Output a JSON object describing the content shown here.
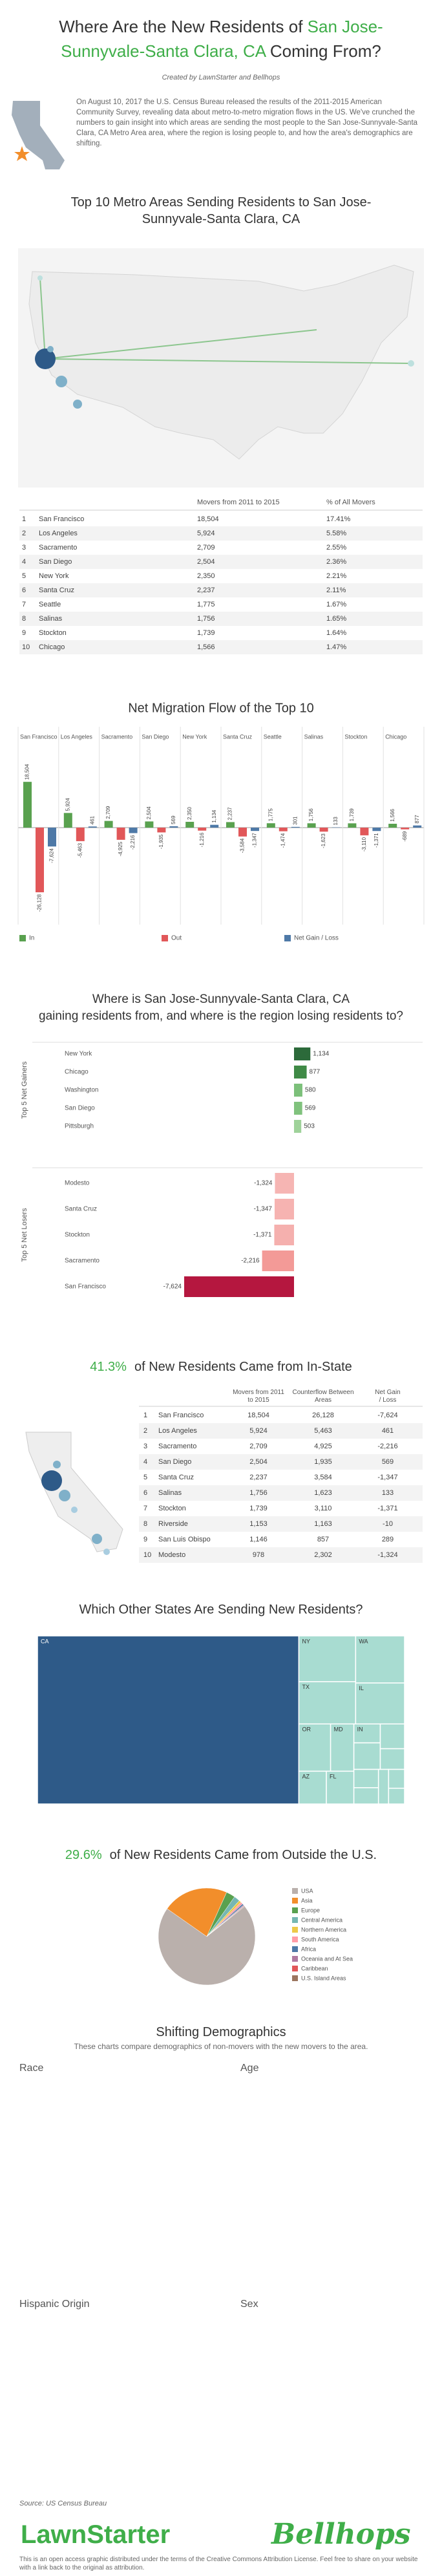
{
  "header": {
    "title_pre": "Where Are the New Residents of ",
    "title_highlight": "San Jose-Sunnyvale-Santa Clara, CA",
    "title_post": " Coming From?",
    "credit": "Created by LawnStarter and Bellhops",
    "intro": "On August 10, 2017 the U.S. Census Bureau released the results of the 2011-2015 American Community Survey, revealing data about metro-to-metro migration flows in the US. We've crunched the numbers to gain insight into which areas are sending the most people to the San Jose-Sunnyvale-Santa Clara, CA Metro Area area, where the region is losing people to, and how the area's demographics are shifting."
  },
  "top10": {
    "title": "Top 10 Metro Areas Sending Residents to San Jose-Sunnyvale-Santa Clara, CA",
    "columns": [
      "Movers from 2011 to 2015",
      "% of All Movers"
    ],
    "rows": [
      [
        "1",
        "San Francisco",
        "18,504",
        "17.41%"
      ],
      [
        "2",
        "Los Angeles",
        "5,924",
        "5.58%"
      ],
      [
        "3",
        "Sacramento",
        "2,709",
        "2.55%"
      ],
      [
        "4",
        "San Diego",
        "2,504",
        "2.36%"
      ],
      [
        "5",
        "New York",
        "2,350",
        "2.21%"
      ],
      [
        "6",
        "Santa Cruz",
        "2,237",
        "2.11%"
      ],
      [
        "7",
        "Seattle",
        "1,775",
        "1.67%"
      ],
      [
        "8",
        "Salinas",
        "1,756",
        "1.65%"
      ],
      [
        "9",
        "Stockton",
        "1,739",
        "1.64%"
      ],
      [
        "10",
        "Chicago",
        "1,566",
        "1.47%"
      ]
    ]
  },
  "chart_data": [
    {
      "type": "bar",
      "title": "Net Migration Flow of the Top 10",
      "categories": [
        "San Francisco",
        "Los Angeles",
        "Sacramento",
        "San Diego",
        "New York",
        "Santa Cruz",
        "Seattle",
        "Salinas",
        "Stockton",
        "Chicago"
      ],
      "series": [
        {
          "name": "In",
          "color": "#59a14f",
          "values": [
            18504,
            5924,
            2709,
            2504,
            2350,
            2237,
            1775,
            1756,
            1739,
            1566
          ],
          "value_labels": [
            "18,504",
            "5,924",
            "2,709",
            "2,504",
            "2,350",
            "2,237",
            "1,775",
            "1,756",
            "1,739",
            "1,566"
          ]
        },
        {
          "name": "Out",
          "color": "#e15759",
          "values": [
            -26128,
            -5463,
            -4925,
            -1935,
            -1216,
            -3584,
            -1474,
            -1623,
            -3110,
            -689
          ],
          "value_labels": [
            "-26,128",
            "-5,463",
            "-4,925",
            "-1,935",
            "-1,216",
            "-3,584",
            "-1,474",
            "-1,623",
            "-3,110",
            "-689"
          ]
        },
        {
          "name": "Net Gain / Loss",
          "color": "#4e79a7",
          "values": [
            -7624,
            461,
            -2216,
            569,
            1134,
            -1347,
            301,
            133,
            -1371,
            877
          ],
          "value_labels": [
            "-7,624",
            "461",
            "-2,216",
            "569",
            "1,134",
            "-1,347",
            "301",
            "133",
            "-1,371",
            "877"
          ]
        }
      ]
    },
    {
      "type": "hbar",
      "title": "Where is San Jose-Sunnyvale-Santa Clara, CA gaining residents from, and where is the region losing residents to?",
      "groups": [
        {
          "name": "Top 5 Net Gainers",
          "categories": [
            "New York",
            "Chicago",
            "Washington",
            "San Diego",
            "Pittsburgh"
          ],
          "values": [
            1134,
            877,
            580,
            569,
            503
          ],
          "value_labels": [
            "1,134",
            "877",
            "580",
            "569",
            "503"
          ],
          "colors": [
            "#2c6a3a",
            "#3f8a46",
            "#7cc07a",
            "#80c27d",
            "#9fd29a"
          ]
        },
        {
          "name": "Top 5 Net Losers",
          "categories": [
            "Modesto",
            "Santa Cruz",
            "Stockton",
            "Sacramento",
            "San Francisco"
          ],
          "values": [
            -1324,
            -1347,
            -1371,
            -2216,
            -7624
          ],
          "value_labels": [
            "-1,324",
            "-1,347",
            "-1,371",
            "-2,216",
            "-7,624"
          ],
          "colors": [
            "#f6b5b3",
            "#f6b3b1",
            "#f5b0ae",
            "#f39a97",
            "#b5173f"
          ]
        }
      ]
    },
    {
      "type": "treemap",
      "title": "Which Other States Are Sending New Residents?",
      "categories": [
        "CA",
        "NY",
        "TX",
        "WA",
        "IL",
        "OR",
        "MD",
        "AZ",
        "FL",
        "IN",
        null,
        null,
        null,
        null,
        null,
        null,
        null,
        null
      ],
      "values": [
        43900,
        2600,
        2400,
        2300,
        2000,
        1500,
        1100,
        900,
        900,
        500,
        700,
        600,
        500,
        450,
        400,
        350,
        300,
        250
      ],
      "color": "#a8dcd1",
      "highlight_color": "#2e5a88"
    },
    {
      "type": "pie",
      "highlight": "29.6%",
      "title": "of New Residents Came from Outside the U.S.",
      "categories": [
        "USA",
        "Asia",
        "Europe",
        "Central America",
        "Northern America",
        "South America",
        "Africa",
        "Oceania and At Sea",
        "Caribbean",
        "U.S. Island Areas"
      ],
      "values": [
        70.4,
        22,
        3,
        2,
        0.8,
        0.7,
        0.5,
        0.3,
        0.1,
        0.2
      ],
      "colors": [
        "#bab0ac",
        "#f28e2b",
        "#59a14f",
        "#76b7b2",
        "#edc948",
        "#ff9da7",
        "#4e79a7",
        "#b07aa1",
        "#e15759",
        "#9c755f"
      ]
    }
  ],
  "instate": {
    "share": "41.3%",
    "title": "of New Residents Came from In-State",
    "columns": [
      "Movers from 2011 to 2015",
      "Counterflow Between Areas",
      "Net Gain / Loss"
    ],
    "rows": [
      [
        "1",
        "San Francisco",
        "18,504",
        "26,128",
        "-7,624"
      ],
      [
        "2",
        "Los Angeles",
        "5,924",
        "5,463",
        "461"
      ],
      [
        "3",
        "Sacramento",
        "2,709",
        "4,925",
        "-2,216"
      ],
      [
        "4",
        "San Diego",
        "2,504",
        "1,935",
        "569"
      ],
      [
        "5",
        "Santa Cruz",
        "2,237",
        "3,584",
        "-1,347"
      ],
      [
        "6",
        "Salinas",
        "1,756",
        "1,623",
        "133"
      ],
      [
        "7",
        "Stockton",
        "1,739",
        "3,110",
        "-1,371"
      ],
      [
        "8",
        "Riverside",
        "1,153",
        "1,163",
        "-10"
      ],
      [
        "9",
        "San Luis Obispo",
        "1,146",
        "857",
        "289"
      ],
      [
        "10",
        "Modesto",
        "978",
        "2,302",
        "-1,324"
      ]
    ]
  },
  "demographics": {
    "title": "Shifting Demographics",
    "subtitle": "These charts compare demographics of non-movers with the new movers to the area.",
    "panels": [
      "Race",
      "Age",
      "Hispanic Origin",
      "Sex"
    ]
  },
  "footer": {
    "source": "Source: US Census Bureau",
    "logos": [
      "LawnStarter",
      "Bellhops"
    ],
    "license": "This is an open access graphic distributed under the terms of the Creative Commons Attribution License. Feel free to share on your website with a link back to the original as attribution."
  }
}
